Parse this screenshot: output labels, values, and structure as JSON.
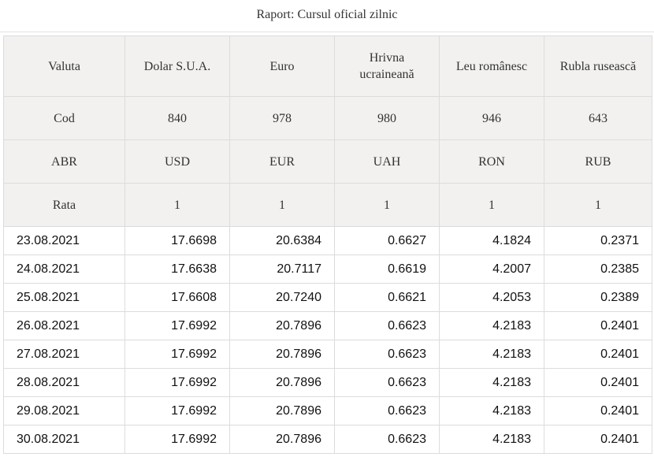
{
  "report": {
    "title": "Raport: Cursul oficial zilnic"
  },
  "table": {
    "header_rows": [
      {
        "label": "Valuta",
        "cells": [
          "Dolar S.U.A.",
          "Euro",
          "Hrivna ucraineană",
          "Leu românesc",
          "Rubla rusească"
        ]
      },
      {
        "label": "Cod",
        "cells": [
          "840",
          "978",
          "980",
          "946",
          "643"
        ]
      },
      {
        "label": "ABR",
        "cells": [
          "USD",
          "EUR",
          "UAH",
          "RON",
          "RUB"
        ]
      },
      {
        "label": "Rata",
        "cells": [
          "1",
          "1",
          "1",
          "1",
          "1"
        ]
      }
    ],
    "rows": [
      {
        "date": "23.08.2021",
        "values": [
          "17.6698",
          "20.6384",
          "0.6627",
          "4.1824",
          "0.2371"
        ]
      },
      {
        "date": "24.08.2021",
        "values": [
          "17.6638",
          "20.7117",
          "0.6619",
          "4.2007",
          "0.2385"
        ]
      },
      {
        "date": "25.08.2021",
        "values": [
          "17.6608",
          "20.7240",
          "0.6621",
          "4.2053",
          "0.2389"
        ]
      },
      {
        "date": "26.08.2021",
        "values": [
          "17.6992",
          "20.7896",
          "0.6623",
          "4.2183",
          "0.2401"
        ]
      },
      {
        "date": "27.08.2021",
        "values": [
          "17.6992",
          "20.7896",
          "0.6623",
          "4.2183",
          "0.2401"
        ]
      },
      {
        "date": "28.08.2021",
        "values": [
          "17.6992",
          "20.7896",
          "0.6623",
          "4.2183",
          "0.2401"
        ]
      },
      {
        "date": "29.08.2021",
        "values": [
          "17.6992",
          "20.7896",
          "0.6623",
          "4.2183",
          "0.2401"
        ]
      },
      {
        "date": "30.08.2021",
        "values": [
          "17.6992",
          "20.7896",
          "0.6623",
          "4.2183",
          "0.2401"
        ]
      }
    ]
  }
}
